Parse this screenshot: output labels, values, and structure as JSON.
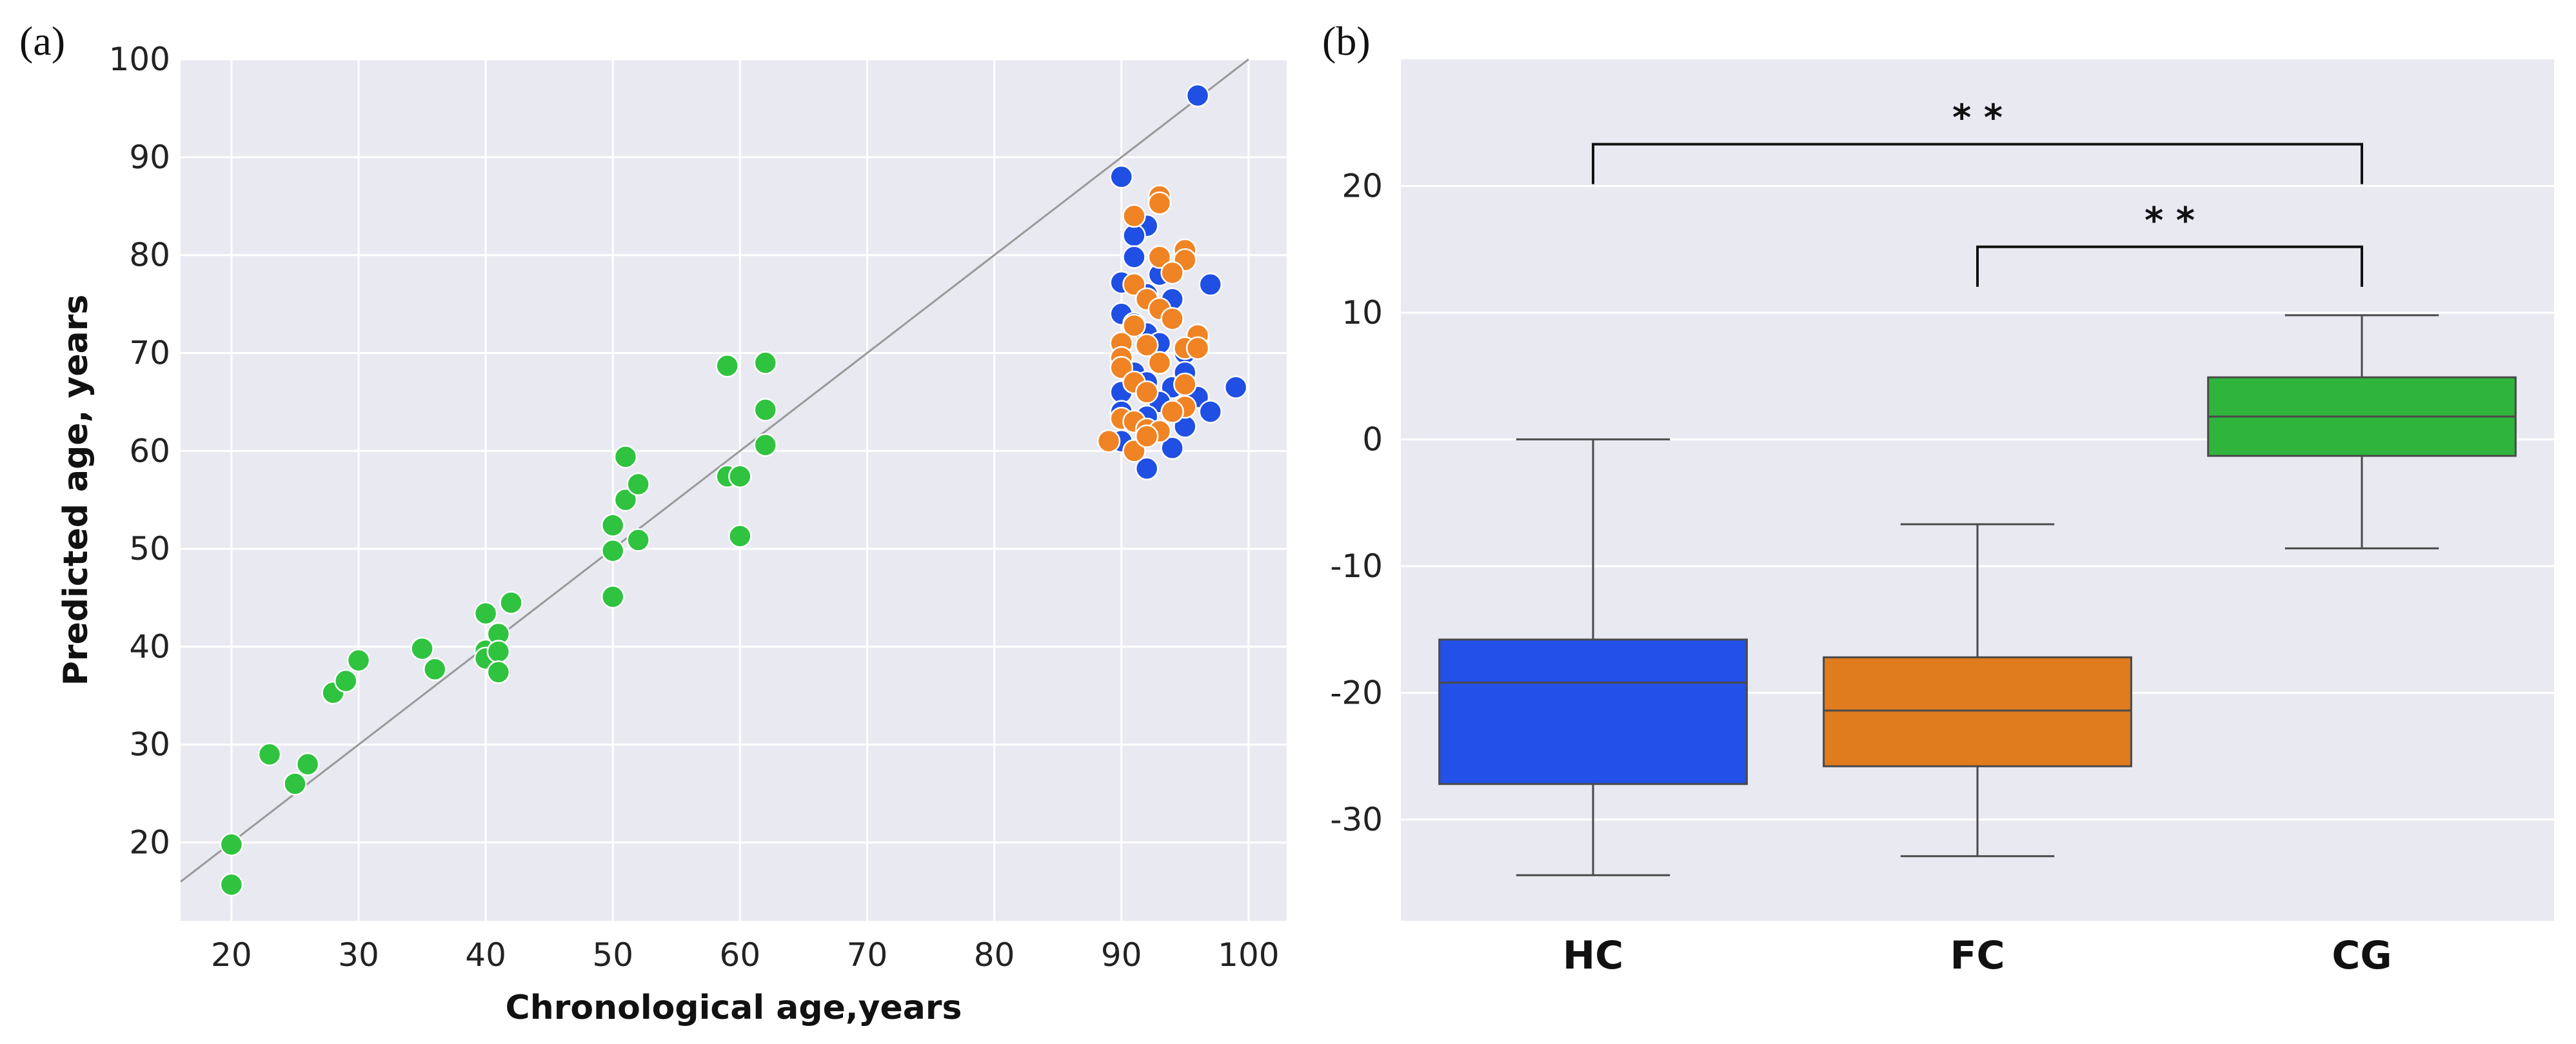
{
  "panels": {
    "a_label": "(a)",
    "b_label": "(b)"
  },
  "chart_data": [
    {
      "type": "scatter",
      "xlabel": "Chronological age,years",
      "ylabel": "Predicted age, years",
      "xlim": [
        16,
        103
      ],
      "ylim": [
        12,
        100
      ],
      "xticks": [
        20,
        30,
        40,
        50,
        60,
        70,
        80,
        90,
        100
      ],
      "yticks": [
        20,
        30,
        40,
        50,
        60,
        70,
        80,
        90,
        100
      ],
      "grid": true,
      "background": "#e9e9f2",
      "reference_line": {
        "from": [
          16,
          16
        ],
        "to": [
          100,
          100
        ],
        "color": "#999999"
      },
      "series": [
        {
          "color": "#2fc33f",
          "points": [
            [
              20,
              19.8
            ],
            [
              20,
              15.7
            ],
            [
              23,
              29
            ],
            [
              25,
              26
            ],
            [
              26,
              28
            ],
            [
              28,
              35.3
            ],
            [
              29,
              36.5
            ],
            [
              30,
              38.6
            ],
            [
              35,
              39.8
            ],
            [
              36,
              37.7
            ],
            [
              40,
              43.4
            ],
            [
              40,
              39.6
            ],
            [
              40,
              38.8
            ],
            [
              41,
              41.3
            ],
            [
              41,
              39.5
            ],
            [
              41,
              37.4
            ],
            [
              42,
              44.5
            ],
            [
              50,
              52.4
            ],
            [
              50,
              49.8
            ],
            [
              50,
              45.1
            ],
            [
              51,
              59.4
            ],
            [
              51,
              55
            ],
            [
              52,
              56.6
            ],
            [
              52,
              50.9
            ],
            [
              59,
              68.7
            ],
            [
              59,
              57.4
            ],
            [
              60,
              57.4
            ],
            [
              60,
              51.3
            ],
            [
              62,
              69
            ],
            [
              62,
              64.2
            ],
            [
              62,
              60.6
            ]
          ]
        },
        {
          "color": "#1f4fe3",
          "points": [
            [
              96,
              96.3
            ],
            [
              90,
              88
            ],
            [
              92,
              83
            ],
            [
              91,
              82
            ],
            [
              91,
              79.8
            ],
            [
              90,
              77.2
            ],
            [
              93,
              78
            ],
            [
              92,
              76
            ],
            [
              94,
              75.5
            ],
            [
              97,
              77
            ],
            [
              90,
              74
            ],
            [
              91,
              73
            ],
            [
              92,
              72
            ],
            [
              93,
              71
            ],
            [
              95,
              70
            ],
            [
              90,
              69
            ],
            [
              91,
              68
            ],
            [
              92,
              67
            ],
            [
              94,
              66.5
            ],
            [
              90,
              66
            ],
            [
              93,
              65
            ],
            [
              96,
              65.5
            ],
            [
              97,
              64
            ],
            [
              99,
              66.5
            ],
            [
              90,
              64
            ],
            [
              91,
              63
            ],
            [
              92,
              62
            ],
            [
              95,
              62.5
            ],
            [
              90,
              61
            ],
            [
              94,
              60.3
            ],
            [
              92,
              58.2
            ],
            [
              91,
              60
            ],
            [
              93,
              69
            ],
            [
              95,
              68
            ],
            [
              92,
              63.5
            ],
            [
              96,
              71
            ]
          ]
        },
        {
          "color": "#f08324",
          "points": [
            [
              93,
              86
            ],
            [
              93,
              85.3
            ],
            [
              91,
              84
            ],
            [
              95,
              80.5
            ],
            [
              95,
              79.5
            ],
            [
              93,
              79.8
            ],
            [
              94,
              78.2
            ],
            [
              91,
              77
            ],
            [
              92,
              75.5
            ],
            [
              93,
              74.5
            ],
            [
              94,
              73.5
            ],
            [
              91,
              72.8
            ],
            [
              96,
              71.8
            ],
            [
              90,
              71
            ],
            [
              92,
              70.8
            ],
            [
              95,
              70.5
            ],
            [
              96,
              70.5
            ],
            [
              90,
              69.5
            ],
            [
              93,
              69
            ],
            [
              90,
              68.5
            ],
            [
              91,
              67
            ],
            [
              95,
              66.8
            ],
            [
              92,
              66
            ],
            [
              95,
              64.5
            ],
            [
              90,
              63.3
            ],
            [
              91,
              63
            ],
            [
              92,
              62.2
            ],
            [
              93,
              62
            ],
            [
              89,
              61
            ],
            [
              91,
              60
            ],
            [
              92,
              61.5
            ],
            [
              94,
              64
            ]
          ]
        }
      ]
    },
    {
      "type": "box",
      "categories": [
        "HC",
        "FC",
        "CG"
      ],
      "ylim": [
        -38,
        30
      ],
      "yticks": [
        20,
        10,
        0,
        -10,
        -20,
        -30
      ],
      "grid": true,
      "background": "#e9e9f2",
      "boxes": [
        {
          "name": "HC",
          "color": "#2350e8",
          "whisker_low": -34.4,
          "q1": -27.2,
          "median": -19.2,
          "q3": -15.8,
          "whisker_high": 0
        },
        {
          "name": "FC",
          "color": "#e07b1e",
          "whisker_low": -32.9,
          "q1": -25.8,
          "median": -21.4,
          "q3": -17.2,
          "whisker_high": -6.7
        },
        {
          "name": "CG",
          "color": "#2fb53b",
          "whisker_low": -8.6,
          "q1": -1.3,
          "median": 1.8,
          "q3": 4.9,
          "whisker_high": 9.8
        }
      ],
      "significance": [
        {
          "from": "HC",
          "to": "CG",
          "label": "* *",
          "y": 23.3
        },
        {
          "from": "FC",
          "to": "CG",
          "label": "* *",
          "y": 15.2
        }
      ]
    }
  ]
}
